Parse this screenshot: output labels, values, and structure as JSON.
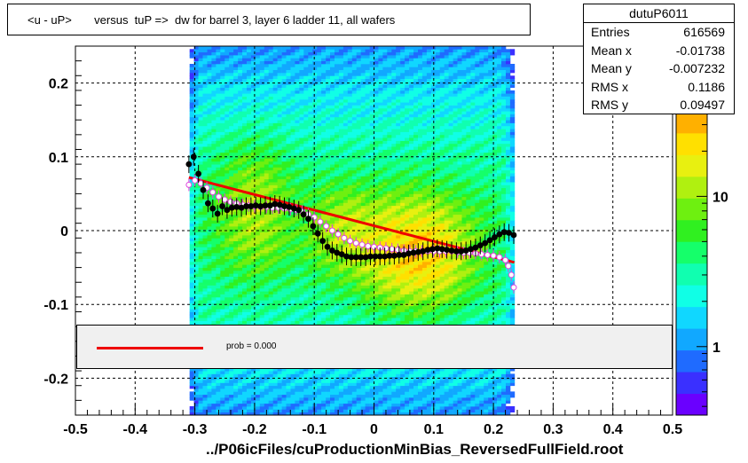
{
  "title": "<u - uP>       versus  tuP =>  dw for barrel 3, layer 6 ladder 11, all wafers",
  "footer": "../P06icFiles/cuProductionMinBias_ReversedFullField.root",
  "stats": {
    "name": "dutuP6011",
    "rows": [
      {
        "label": "Entries",
        "value": "616569"
      },
      {
        "label": "Mean x",
        "value": "-0.01738"
      },
      {
        "label": "Mean y",
        "value": "-0.007232"
      },
      {
        "label": "RMS x",
        "value": "0.1186"
      },
      {
        "label": "RMS y",
        "value": "0.09497"
      }
    ]
  },
  "legend": {
    "label": "prob = 0.000",
    "line_color": "#ee0000"
  },
  "colors": {
    "fit_line": "#ee0000",
    "profile_points": "#000000",
    "open_points": "#dd44dd"
  },
  "chart_data": {
    "type": "heatmap",
    "xlim": [
      -0.5,
      0.5
    ],
    "ylim": [
      -0.25,
      0.25
    ],
    "x_ticks": [
      -0.5,
      -0.4,
      -0.3,
      -0.2,
      -0.1,
      0,
      0.1,
      0.2,
      0.3,
      0.4,
      0.5
    ],
    "x_tick_labels": [
      "-0.5",
      "-0.4",
      "-0.3",
      "-0.2",
      "-0.1",
      "0",
      "0.1",
      "0.2",
      "0.3",
      "0.4",
      "0.5"
    ],
    "y_ticks": [
      -0.2,
      -0.1,
      0,
      0.1,
      0.2
    ],
    "y_tick_labels": [
      "-0.2",
      "-0.1",
      "0",
      "0.1",
      "0.2"
    ],
    "grid": true,
    "colorbar": {
      "scale": "log",
      "tick_labels": [
        "1",
        "10"
      ],
      "tick_values": [
        1,
        10
      ],
      "range": [
        0.35,
        100
      ]
    },
    "fit_line": {
      "x": [
        -0.31,
        0.235
      ],
      "y": [
        0.072,
        -0.043
      ]
    },
    "profile_points": {
      "x": [
        -0.31,
        -0.302,
        -0.294,
        -0.286,
        -0.278,
        -0.27,
        -0.262,
        -0.254,
        -0.246,
        -0.238,
        -0.23,
        -0.222,
        -0.214,
        -0.206,
        -0.198,
        -0.19,
        -0.182,
        -0.174,
        -0.166,
        -0.158,
        -0.15,
        -0.142,
        -0.134,
        -0.126,
        -0.118,
        -0.11,
        -0.102,
        -0.094,
        -0.086,
        -0.078,
        -0.07,
        -0.062,
        -0.054,
        -0.046,
        -0.038,
        -0.03,
        -0.022,
        -0.014,
        -0.006,
        0.002,
        0.01,
        0.018,
        0.026,
        0.034,
        0.042,
        0.05,
        0.058,
        0.066,
        0.074,
        0.082,
        0.09,
        0.098,
        0.106,
        0.114,
        0.122,
        0.13,
        0.138,
        0.146,
        0.154,
        0.162,
        0.17,
        0.178,
        0.186,
        0.194,
        0.202,
        0.21,
        0.218,
        0.226,
        0.234
      ],
      "y": [
        0.09,
        0.1,
        0.077,
        0.055,
        0.037,
        0.03,
        0.023,
        0.033,
        0.028,
        0.031,
        0.032,
        0.031,
        0.033,
        0.033,
        0.034,
        0.033,
        0.034,
        0.034,
        0.036,
        0.035,
        0.033,
        0.032,
        0.03,
        0.028,
        0.022,
        0.016,
        0.006,
        -0.004,
        -0.014,
        -0.022,
        -0.027,
        -0.03,
        -0.032,
        -0.035,
        -0.036,
        -0.036,
        -0.036,
        -0.036,
        -0.035,
        -0.035,
        -0.035,
        -0.035,
        -0.034,
        -0.034,
        -0.033,
        -0.033,
        -0.031,
        -0.03,
        -0.029,
        -0.028,
        -0.026,
        -0.025,
        -0.024,
        -0.025,
        -0.026,
        -0.027,
        -0.028,
        -0.028,
        -0.027,
        -0.025,
        -0.023,
        -0.02,
        -0.017,
        -0.013,
        -0.009,
        -0.005,
        -0.002,
        -0.003,
        -0.006
      ]
    },
    "open_points": {
      "x": [
        -0.31,
        -0.3,
        -0.29,
        -0.28,
        -0.27,
        -0.26,
        -0.25,
        -0.24,
        -0.23,
        -0.22,
        -0.21,
        -0.2,
        -0.19,
        -0.18,
        -0.17,
        -0.16,
        -0.15,
        -0.14,
        -0.13,
        -0.12,
        -0.11,
        -0.1,
        -0.09,
        -0.08,
        -0.07,
        -0.06,
        -0.05,
        -0.04,
        -0.03,
        -0.02,
        -0.01,
        0,
        0.01,
        0.02,
        0.03,
        0.04,
        0.05,
        0.06,
        0.07,
        0.08,
        0.09,
        0.1,
        0.11,
        0.12,
        0.13,
        0.14,
        0.15,
        0.16,
        0.17,
        0.18,
        0.19,
        0.2,
        0.21,
        0.22,
        0.225,
        0.23,
        0.234
      ],
      "y": [
        0.062,
        0.068,
        0.064,
        0.058,
        0.052,
        0.046,
        0.042,
        0.039,
        0.037,
        0.035,
        0.034,
        0.033,
        0.032,
        0.032,
        0.031,
        0.031,
        0.03,
        0.029,
        0.028,
        0.026,
        0.022,
        0.018,
        0.012,
        0.006,
        0.0,
        -0.005,
        -0.01,
        -0.014,
        -0.017,
        -0.019,
        -0.021,
        -0.022,
        -0.023,
        -0.024,
        -0.025,
        -0.026,
        -0.027,
        -0.028,
        -0.028,
        -0.028,
        -0.028,
        -0.028,
        -0.028,
        -0.028,
        -0.028,
        -0.029,
        -0.03,
        -0.03,
        -0.031,
        -0.032,
        -0.033,
        -0.034,
        -0.036,
        -0.04,
        -0.048,
        -0.06,
        -0.077
      ]
    }
  }
}
